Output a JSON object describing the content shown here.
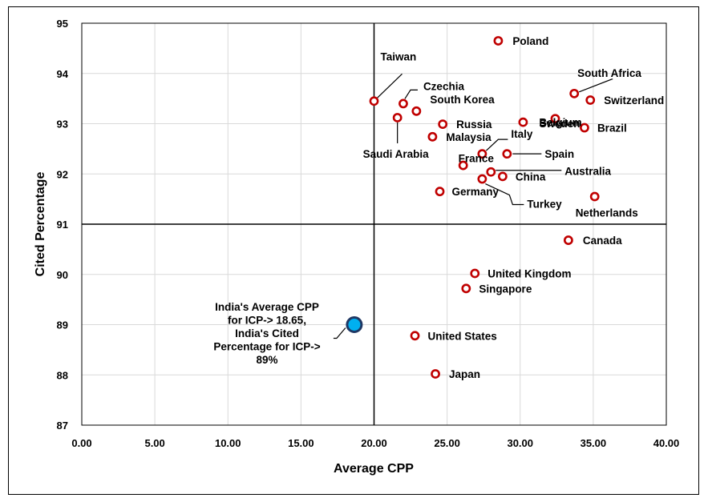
{
  "chart_data": {
    "type": "scatter",
    "title": "",
    "xlabel": "Average CPP",
    "ylabel": "Cited Percentage",
    "xlim": [
      0,
      40
    ],
    "ylim": [
      87,
      95
    ],
    "x_ticks": [
      "0.00",
      "5.00",
      "10.00",
      "15.00",
      "20.00",
      "25.00",
      "30.00",
      "35.00",
      "40.00"
    ],
    "y_ticks": [
      "87",
      "88",
      "89",
      "90",
      "91",
      "92",
      "93",
      "94",
      "95"
    ],
    "grid": true,
    "quadrant_lines": {
      "x": 20,
      "y": 91
    },
    "marker_color": "#c00000",
    "highlight_fill": "#00b0f0",
    "highlight_stroke": "#1f3864",
    "points": [
      {
        "name": "Poland",
        "x": 28.5,
        "y": 94.65
      },
      {
        "name": "Taiwan",
        "x": 20.0,
        "y": 93.45
      },
      {
        "name": "Czechia",
        "x": 22.0,
        "y": 93.4
      },
      {
        "name": "South Africa",
        "x": 33.7,
        "y": 93.6
      },
      {
        "name": "Switzerland",
        "x": 34.8,
        "y": 93.47
      },
      {
        "name": "Sweden",
        "x": 32.4,
        "y": 93.1
      },
      {
        "name": "South Korea",
        "x": 22.9,
        "y": 93.25
      },
      {
        "name": "Saudi Arabia",
        "x": 21.6,
        "y": 93.12
      },
      {
        "name": "Russia",
        "x": 24.7,
        "y": 92.99
      },
      {
        "name": "Belgium",
        "x": 30.2,
        "y": 93.03
      },
      {
        "name": "Brazil",
        "x": 34.4,
        "y": 92.92
      },
      {
        "name": "Malaysia",
        "x": 24.0,
        "y": 92.74
      },
      {
        "name": "Italy",
        "x": 27.4,
        "y": 92.4
      },
      {
        "name": "Spain",
        "x": 29.1,
        "y": 92.4
      },
      {
        "name": "France",
        "x": 26.1,
        "y": 92.17
      },
      {
        "name": "Australia",
        "x": 28.0,
        "y": 92.04
      },
      {
        "name": "China",
        "x": 28.8,
        "y": 91.95
      },
      {
        "name": "Turkey",
        "x": 27.4,
        "y": 91.9
      },
      {
        "name": "Germany",
        "x": 24.5,
        "y": 91.65
      },
      {
        "name": "Netherlands",
        "x": 35.1,
        "y": 91.55
      },
      {
        "name": "Canada",
        "x": 33.3,
        "y": 90.68
      },
      {
        "name": "United Kingdom",
        "x": 26.9,
        "y": 90.02
      },
      {
        "name": "Singapore",
        "x": 26.3,
        "y": 89.72
      },
      {
        "name": "United States",
        "x": 22.8,
        "y": 88.78
      },
      {
        "name": "Japan",
        "x": 24.2,
        "y": 88.02
      }
    ],
    "highlight": {
      "name": "India",
      "x": 18.65,
      "y": 89,
      "annotation": [
        "India's Average CPP",
        "for ICP-> 18.65,",
        "India's Cited",
        "Percentage for ICP->",
        "89%"
      ]
    }
  }
}
